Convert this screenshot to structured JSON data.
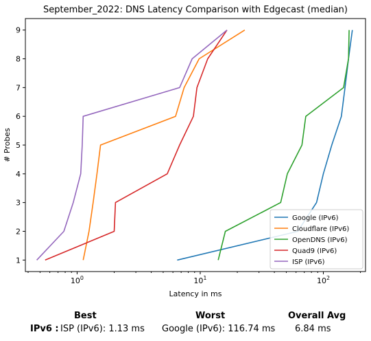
{
  "chart_data": {
    "type": "line",
    "title": "September_2022: DNS Latency Comparison with Edgecast (median)",
    "xlabel": "Latency in ms",
    "ylabel": "# Probes",
    "xscale": "log",
    "xlim": [
      0.38,
      220
    ],
    "ylim": [
      0.6,
      9.4
    ],
    "x_tick_labels": [
      "10^0",
      "10^1",
      "10^2"
    ],
    "y_ticks": [
      1,
      2,
      3,
      4,
      5,
      6,
      7,
      8,
      9
    ],
    "grid": false,
    "legend_position": "lower-right",
    "series": [
      {
        "name": "Google (IPv6)",
        "color": "#1f77b4",
        "points": [
          [
            6.5,
            1
          ],
          [
            62,
            2
          ],
          [
            88,
            3
          ],
          [
            100,
            4
          ],
          [
            117,
            5
          ],
          [
            140,
            6
          ],
          [
            150,
            7
          ],
          [
            160,
            8
          ],
          [
            172,
            9
          ]
        ]
      },
      {
        "name": "Cloudflare (IPv6)",
        "color": "#ff7f0e",
        "points": [
          [
            1.12,
            1
          ],
          [
            1.25,
            2
          ],
          [
            1.35,
            3
          ],
          [
            1.45,
            4
          ],
          [
            1.55,
            5
          ],
          [
            6.3,
            6
          ],
          [
            7.4,
            7
          ],
          [
            9.8,
            8
          ],
          [
            23,
            9
          ]
        ]
      },
      {
        "name": "OpenDNS (IPv6)",
        "color": "#2ca02c",
        "points": [
          [
            14,
            1
          ],
          [
            16,
            2
          ],
          [
            45,
            3
          ],
          [
            51,
            4
          ],
          [
            67,
            5
          ],
          [
            72,
            6
          ],
          [
            146,
            7
          ],
          [
            160,
            8
          ],
          [
            162,
            9
          ]
        ]
      },
      {
        "name": "Quad9 (IPv6)",
        "color": "#d62728",
        "points": [
          [
            0.55,
            1
          ],
          [
            2,
            2
          ],
          [
            2.05,
            3
          ],
          [
            5.4,
            4
          ],
          [
            6.8,
            5
          ],
          [
            8.8,
            6
          ],
          [
            9.4,
            7
          ],
          [
            11.5,
            8
          ],
          [
            16.5,
            9
          ]
        ]
      },
      {
        "name": "ISP (IPv6)",
        "color": "#9467bd",
        "points": [
          [
            0.47,
            1
          ],
          [
            0.78,
            2
          ],
          [
            0.93,
            3
          ],
          [
            1.07,
            4
          ],
          [
            1.1,
            5
          ],
          [
            1.12,
            6
          ],
          [
            6.8,
            7
          ],
          [
            8.6,
            8
          ],
          [
            16.5,
            9
          ]
        ]
      }
    ]
  },
  "summary": {
    "row_label": "IPv6 :",
    "best_header": "Best",
    "best_value": "ISP (IPv6): 1.13 ms",
    "worst_header": "Worst",
    "worst_value": "Google (IPv6): 116.74 ms",
    "avg_header": "Overall Avg",
    "avg_value": "6.84 ms"
  }
}
